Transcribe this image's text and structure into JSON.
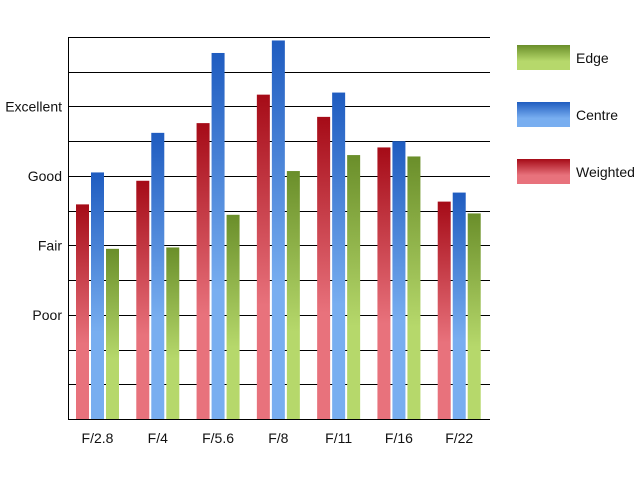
{
  "chart_data": {
    "type": "bar",
    "categories": [
      "F/2.8",
      "F/4",
      "F/5.6",
      "F/8",
      "F/11",
      "F/16",
      "F/22"
    ],
    "series": [
      {
        "name": "Weighted",
        "values": [
          2.59,
          2.93,
          3.76,
          4.17,
          3.85,
          3.41,
          2.63
        ],
        "color_light": "#e8727c",
        "color_dark": "#a50b17"
      },
      {
        "name": "Centre",
        "values": [
          3.05,
          3.62,
          4.77,
          4.95,
          4.2,
          3.5,
          2.76
        ],
        "color_light": "#78aef0",
        "color_dark": "#1f5cc0"
      },
      {
        "name": "Edge",
        "values": [
          1.95,
          1.97,
          2.44,
          3.07,
          3.3,
          3.28,
          2.46
        ],
        "color_light": "#b6d86b",
        "color_dark": "#6a8e2a"
      }
    ],
    "legend_order": [
      "Edge",
      "Centre",
      "Weighted"
    ],
    "y_ticks": [
      {
        "value": 1,
        "label": "Poor"
      },
      {
        "value": 2,
        "label": "Fair"
      },
      {
        "value": 3,
        "label": "Good"
      },
      {
        "value": 4,
        "label": "Excellent"
      }
    ],
    "ylim": [
      -0.5,
      5.0
    ],
    "grid": true,
    "legend_position": "right",
    "title": "",
    "xlabel": "",
    "ylabel": ""
  }
}
